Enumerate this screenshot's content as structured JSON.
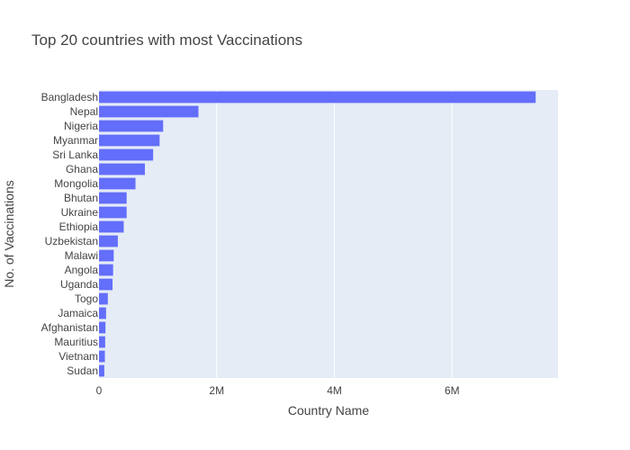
{
  "chart_data": {
    "type": "bar",
    "orientation": "horizontal",
    "title": "Top 20 countries with most Vaccinations",
    "xlabel": "Country Name",
    "ylabel": "No. of Vaccinations",
    "categories": [
      "Bangladesh",
      "Nepal",
      "Nigeria",
      "Myanmar",
      "Sri Lanka",
      "Ghana",
      "Mongolia",
      "Bhutan",
      "Ukraine",
      "Ethiopia",
      "Uzbekistan",
      "Malawi",
      "Angola",
      "Uganda",
      "Togo",
      "Jamaica",
      "Afghanistan",
      "Mauritius",
      "Vietnam",
      "Sudan"
    ],
    "values": [
      7420000,
      1690000,
      1090000,
      1030000,
      920000,
      780000,
      620000,
      470000,
      470000,
      420000,
      320000,
      250000,
      240000,
      230000,
      150000,
      120000,
      110000,
      105000,
      100000,
      90000
    ],
    "xlim": [
      0,
      7800000
    ],
    "xticks": [
      0,
      2000000,
      4000000,
      6000000
    ],
    "xtick_labels": [
      "0",
      "2M",
      "4M",
      "6M"
    ],
    "grid": true,
    "colors": {
      "bar": "#636efa",
      "plot_bg": "#e5ecf6",
      "grid": "#ffffff",
      "text": "#444444"
    }
  }
}
